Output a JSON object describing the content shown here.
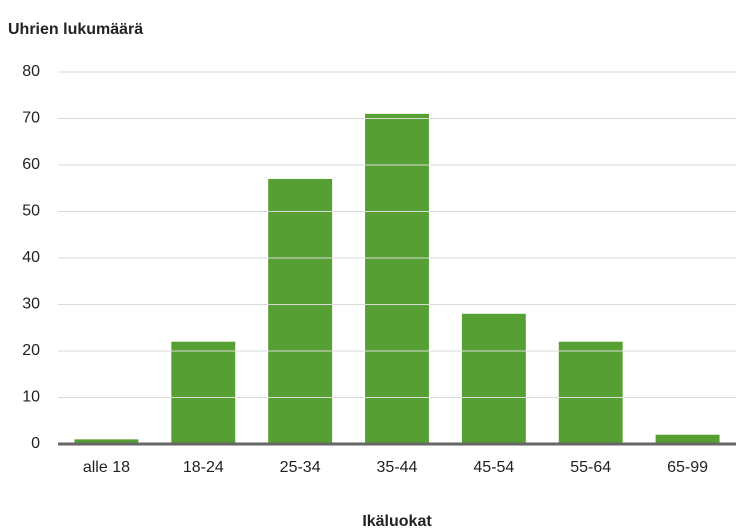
{
  "chart_data": {
    "type": "bar",
    "y_axis_label": "Uhrien lukumäärä",
    "x_axis_label": "Ikäluokat",
    "categories": [
      "alle 18",
      "18-24",
      "25-34",
      "35-44",
      "45-54",
      "55-64",
      "65-99"
    ],
    "values": [
      1,
      22,
      57,
      71,
      28,
      22,
      2
    ],
    "color": "#56a033",
    "ylim": [
      0,
      80
    ],
    "yticks": [
      0,
      10,
      20,
      30,
      40,
      50,
      60,
      70,
      80
    ],
    "grid": true
  }
}
